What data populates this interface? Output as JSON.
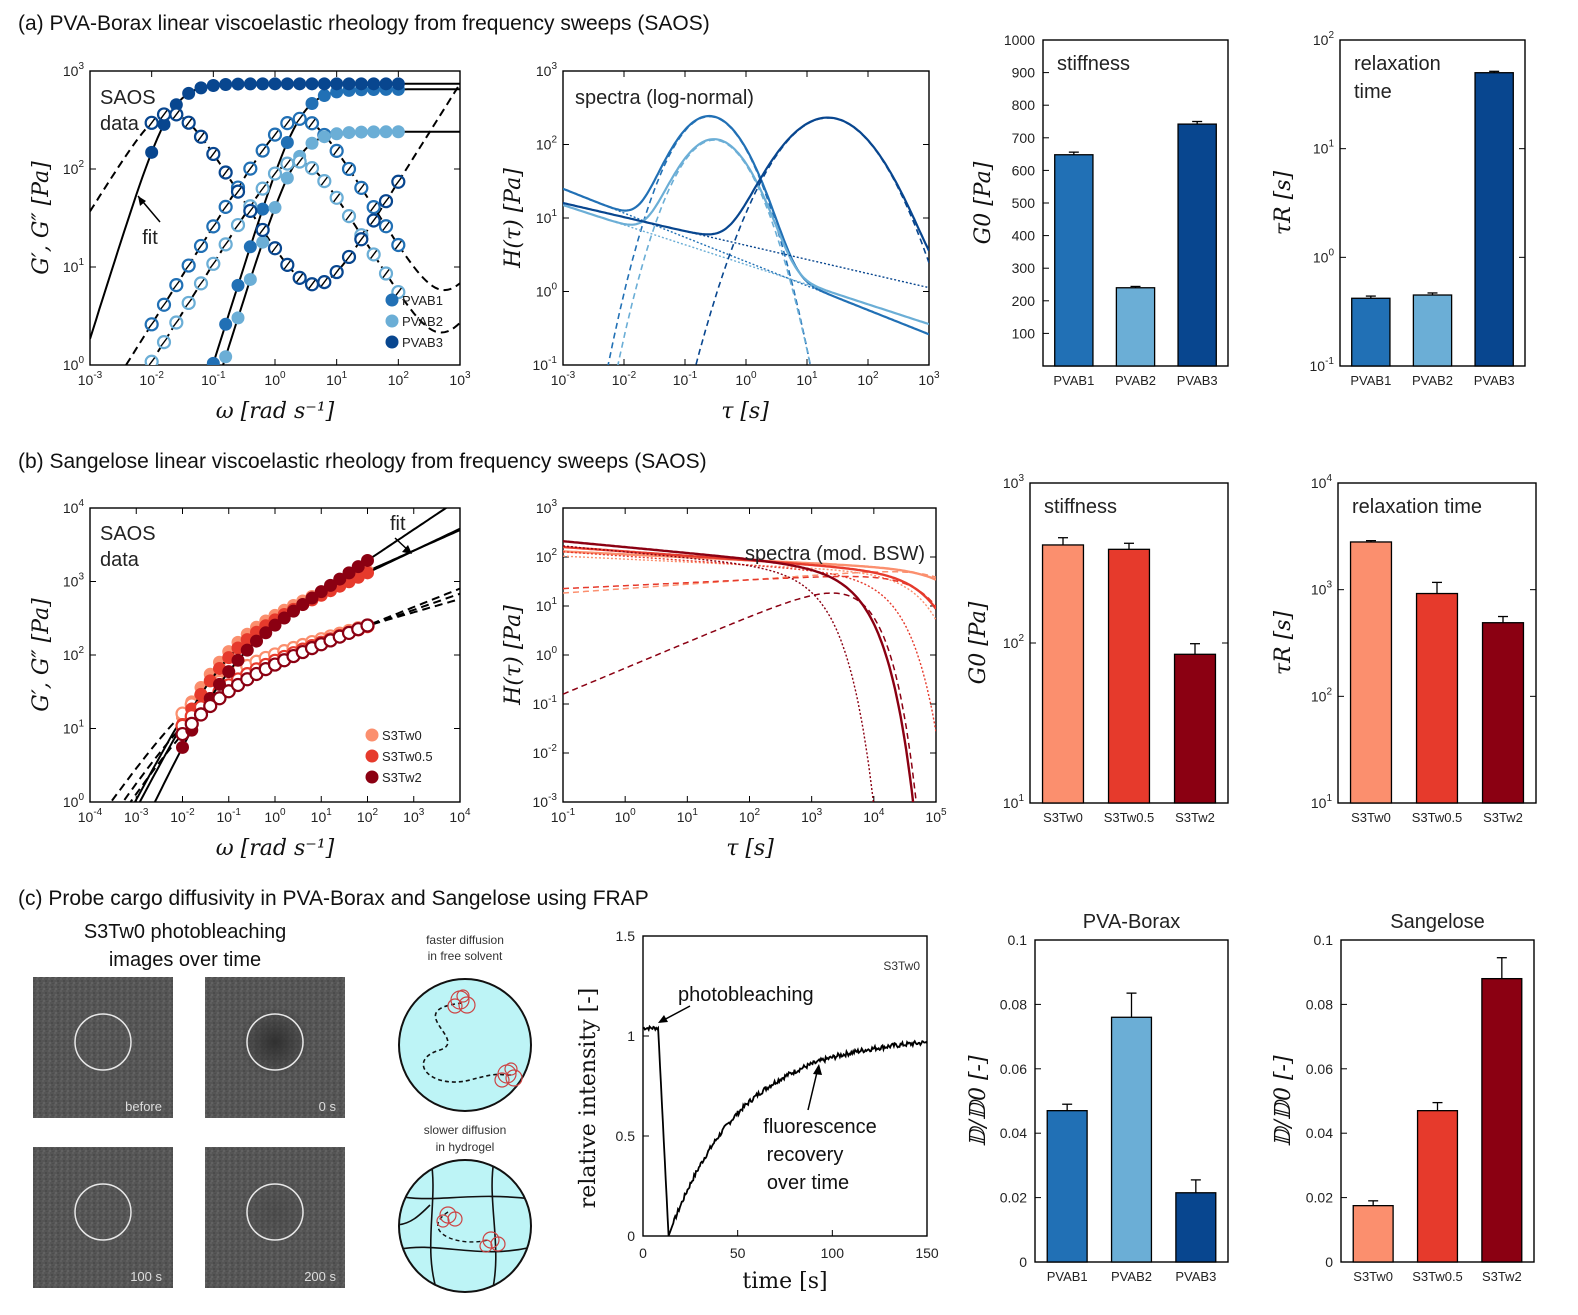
{
  "sections": {
    "a_title": "(a) PVA-Borax linear viscoelastic rheology from frequency sweeps (SAOS)",
    "b_title": "(b) Sangelose linear viscoelastic rheology from frequency sweeps (SAOS)",
    "c_title": "(c) Probe cargo diffusivity in PVA-Borax and Sangelose using FRAP"
  },
  "colors": {
    "pvab1": "#2170b5",
    "pvab2": "#6baed6",
    "pvab3": "#08468f",
    "s0": "#fb8f6e",
    "s05": "#e63a2c",
    "s2": "#8b0012"
  },
  "chart_data": [
    {
      "id": "a_saos",
      "type": "scatter",
      "title": "SAOS data",
      "xlabel": "ω [rad s⁻¹]",
      "ylabel": "G′, G″ [Pa]",
      "xlim": [
        0.001,
        1000
      ],
      "ylim": [
        1,
        1000
      ],
      "xscale": "log",
      "yscale": "log",
      "xticks": [
        "10-3",
        "10-2",
        "10-1",
        "100",
        "101",
        "102",
        "103"
      ],
      "yticks": [
        "100",
        "101",
        "102",
        "103"
      ],
      "annotation": "fit",
      "legend": [
        "PVAB1",
        "PVAB2",
        "PVAB3"
      ],
      "series": [
        {
          "name": "PVAB1",
          "G0": 650,
          "tau": 0.4
        },
        {
          "name": "PVAB2",
          "G0": 240,
          "tau": 0.45
        },
        {
          "name": "PVAB3",
          "G0": 740,
          "tau": 50
        }
      ]
    },
    {
      "id": "a_spectra",
      "type": "line",
      "title": "spectra (log-normal)",
      "xlabel": "τ [s]",
      "ylabel": "H(τ) [Pa]",
      "xlim": [
        0.001,
        1000
      ],
      "ylim": [
        0.1,
        1000
      ],
      "xticks": [
        "10-3",
        "10-2",
        "10-1",
        "100",
        "101",
        "102",
        "103"
      ],
      "yticks": [
        "10-1",
        "100",
        "101",
        "102",
        "103"
      ],
      "series": [
        {
          "name": "PVAB1",
          "peak_tau": 0.25,
          "peak_H": 240
        },
        {
          "name": "PVAB2",
          "peak_tau": 0.3,
          "peak_H": 115
        },
        {
          "name": "PVAB3",
          "peak_tau": 22,
          "peak_H": 230
        }
      ]
    },
    {
      "id": "a_stiffness",
      "type": "bar",
      "title": "stiffness",
      "ylabel": "G0 [Pa]",
      "categories": [
        "PVAB1",
        "PVAB2",
        "PVAB3"
      ],
      "values": [
        648,
        240,
        742
      ],
      "errors": [
        8,
        4,
        8
      ],
      "ylim": [
        0,
        1000
      ],
      "yticks": [
        "100",
        "200",
        "300",
        "400",
        "500",
        "600",
        "700",
        "800",
        "900",
        "1000"
      ]
    },
    {
      "id": "a_relax",
      "type": "bar",
      "title": "relaxation time",
      "title_lines": [
        "relaxation",
        "time"
      ],
      "ylabel": "τR [s]",
      "categories": [
        "PVAB1",
        "PVAB2",
        "PVAB3"
      ],
      "values": [
        0.42,
        0.45,
        50
      ],
      "errors": [
        0.02,
        0.02,
        1.5
      ],
      "ylim": [
        0.1,
        100
      ],
      "yscale": "log",
      "yticks": [
        "10-1",
        "100",
        "101",
        "102"
      ]
    },
    {
      "id": "b_saos",
      "type": "scatter",
      "title": "SAOS data",
      "xlabel": "ω [rad s⁻¹]",
      "ylabel": "G′, G″ [Pa]",
      "xlim": [
        0.0001,
        10000
      ],
      "ylim": [
        1,
        10000
      ],
      "xticks": [
        "10-4",
        "10-3",
        "10-2",
        "10-1",
        "100",
        "101",
        "102",
        "103",
        "104"
      ],
      "yticks": [
        "100",
        "101",
        "102",
        "103",
        "104"
      ],
      "annotation": "fit",
      "legend": [
        "S3Tw0",
        "S3Tw0.5",
        "S3Tw2"
      ]
    },
    {
      "id": "b_spectra",
      "type": "line",
      "title": "spectra (mod. BSW)",
      "xlabel": "τ [s]",
      "ylabel": "H(τ) [Pa]",
      "xlim": [
        0.1,
        100000
      ],
      "ylim": [
        0.001,
        1000
      ],
      "xticks": [
        "10-1",
        "100",
        "101",
        "102",
        "103",
        "104",
        "105"
      ],
      "yticks": [
        "10-3",
        "10-2",
        "10-1",
        "100",
        "101",
        "102",
        "103"
      ]
    },
    {
      "id": "b_stiffness",
      "type": "bar",
      "title": "stiffness",
      "ylabel": "G0 [Pa]",
      "categories": [
        "S3Tw0",
        "S3Tw0.5",
        "S3Tw2"
      ],
      "values": [
        410,
        385,
        85
      ],
      "errors": [
        45,
        35,
        14
      ],
      "ylim": [
        10,
        1000
      ],
      "yscale": "log",
      "yticks": [
        "101",
        "102",
        "103"
      ]
    },
    {
      "id": "b_relax",
      "type": "bar",
      "title": "relaxation time",
      "ylabel": "τR [s]",
      "categories": [
        "S3Tw0",
        "S3Tw0.5",
        "S3Tw2"
      ],
      "values": [
        2800,
        920,
        490
      ],
      "errors": [
        80,
        250,
        70
      ],
      "ylim": [
        10,
        10000
      ],
      "yscale": "log",
      "yticks": [
        "101",
        "102",
        "103",
        "104"
      ]
    },
    {
      "id": "c_frap",
      "type": "line",
      "title": "S3Tw0",
      "xlabel": "time [s]",
      "ylabel": "relative intensity [-]",
      "xlim": [
        0,
        150
      ],
      "ylim": [
        0,
        1.5
      ],
      "xticks": [
        "0",
        "50",
        "100",
        "150"
      ],
      "yticks": [
        "0",
        "0.5",
        "1",
        "1.5"
      ],
      "annotations": [
        "photobleaching",
        "fluorescence",
        "recovery",
        "over time"
      ]
    },
    {
      "id": "c_pva",
      "type": "bar",
      "title": "PVA-Borax",
      "ylabel": "𝔻/𝔻0 [-]",
      "categories": [
        "PVAB1",
        "PVAB2",
        "PVAB3"
      ],
      "values": [
        0.047,
        0.076,
        0.0215
      ],
      "errors": [
        0.002,
        0.0075,
        0.004
      ],
      "ylim": [
        0,
        0.1
      ],
      "yticks": [
        "0",
        "0.02",
        "0.04",
        "0.06",
        "0.08",
        "0.1"
      ]
    },
    {
      "id": "c_sang",
      "type": "bar",
      "title": "Sangelose",
      "ylabel": "𝔻/𝔻0 [-]",
      "categories": [
        "S3Tw0",
        "S3Tw0.5",
        "S3Tw2"
      ],
      "values": [
        0.0175,
        0.047,
        0.088
      ],
      "errors": [
        0.0015,
        0.0025,
        0.0065
      ],
      "ylim": [
        0,
        0.1
      ],
      "yticks": [
        "0",
        "0.02",
        "0.04",
        "0.06",
        "0.08",
        "0.1"
      ]
    }
  ],
  "frap_images": {
    "title_line1": "S3Tw0 photobleaching",
    "title_line2": "images over time",
    "captions": [
      "before",
      "0 s",
      "100 s",
      "200 s"
    ]
  },
  "schematic": {
    "top_line1": "faster diffusion",
    "top_line2": "in free solvent",
    "bottom_line1": "slower diffusion",
    "bottom_line2": "in hydrogel"
  }
}
